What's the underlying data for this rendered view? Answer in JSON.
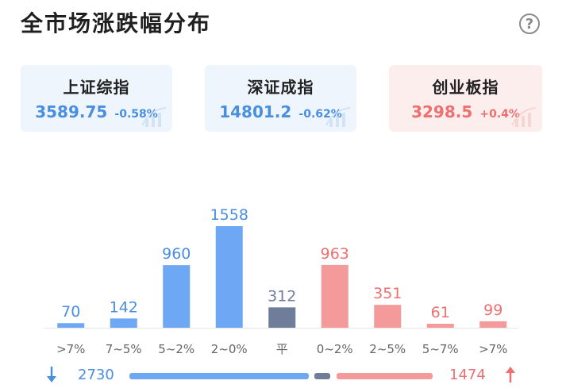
{
  "header": {
    "title": "全市场涨跌幅分布",
    "help_icon": "?"
  },
  "indices": [
    {
      "name": "上证综指",
      "value": "3589.75",
      "change": "-0.58%",
      "tone": "down"
    },
    {
      "name": "深证成指",
      "value": "14801.2",
      "change": "-0.62%",
      "tone": "down"
    },
    {
      "name": "创业板指",
      "value": "3298.5",
      "change": "+0.4%",
      "tone": "up"
    }
  ],
  "colors": {
    "down": "#6ea8f5",
    "flat": "#6e7d99",
    "up": "#f49a9a",
    "down_text": "#4a8ee0",
    "up_text": "#ee6f6f"
  },
  "chart_data": {
    "type": "bar",
    "categories": [
      ">7%",
      "7~5%",
      "5~2%",
      "2~0%",
      "平",
      "0~2%",
      "2~5%",
      "5~7%",
      ">7%"
    ],
    "values": [
      70,
      142,
      960,
      1558,
      312,
      963,
      351,
      61,
      99
    ],
    "groups": [
      "down",
      "down",
      "down",
      "down",
      "flat",
      "up",
      "up",
      "up",
      "up"
    ],
    "ylim": [
      0,
      1558
    ]
  },
  "summary": {
    "down_total": "2730",
    "up_total": "1474",
    "down_arrow_icon": "arrow-down-icon",
    "up_arrow_icon": "arrow-up-icon"
  }
}
